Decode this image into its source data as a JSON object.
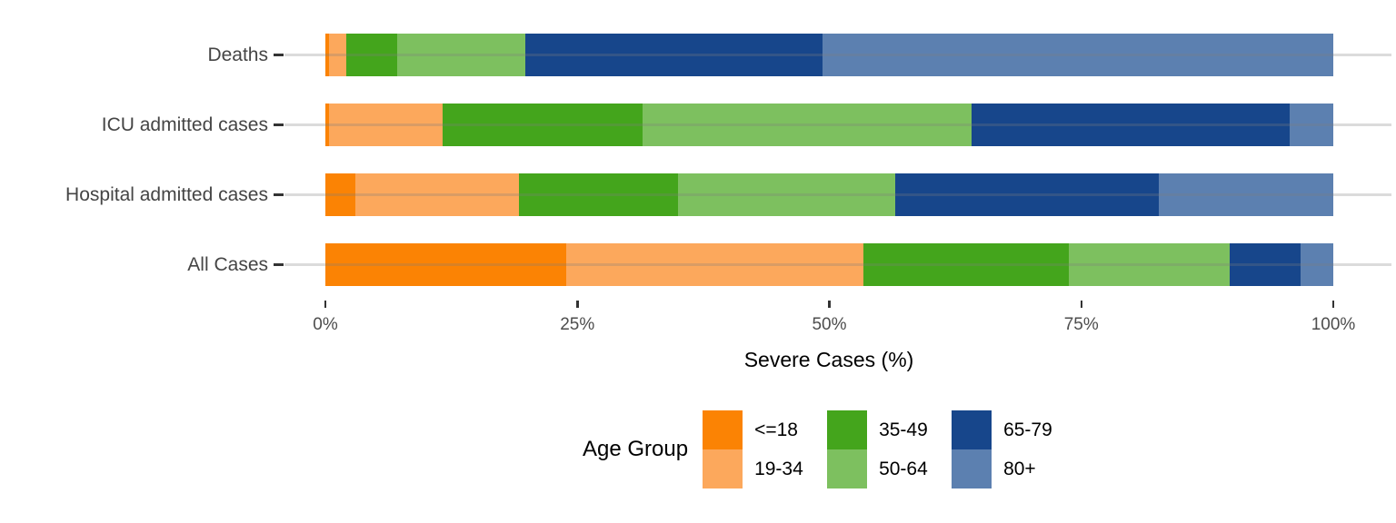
{
  "chart_data": {
    "type": "bar",
    "orientation": "horizontal",
    "stacked": true,
    "title": "",
    "xlabel": "Severe Cases (%)",
    "ylabel": "",
    "xlim": [
      0,
      100
    ],
    "grid": "horizontal-only",
    "x_ticks": [
      {
        "value": 0,
        "label": "0%"
      },
      {
        "value": 25,
        "label": "25%"
      },
      {
        "value": 50,
        "label": "50%"
      },
      {
        "value": 75,
        "label": "75%"
      },
      {
        "value": 100,
        "label": "100%"
      }
    ],
    "categories": [
      "Deaths",
      "ICU admitted cases",
      "Hospital admitted cases",
      "All Cases"
    ],
    "series": [
      {
        "name": "<=18",
        "color": "#FB8304",
        "values": [
          0.4,
          0.4,
          3.0,
          23.9
        ]
      },
      {
        "name": "19-34",
        "color": "#FCA85C",
        "values": [
          1.7,
          11.2,
          16.2,
          29.5
        ]
      },
      {
        "name": "35-49",
        "color": "#44A51C",
        "values": [
          5.0,
          19.9,
          15.8,
          20.4
        ]
      },
      {
        "name": "50-64",
        "color": "#7DC05F",
        "values": [
          12.7,
          32.6,
          21.5,
          15.9
        ]
      },
      {
        "name": "65-79",
        "color": "#17468B",
        "values": [
          29.5,
          31.6,
          26.2,
          7.1
        ]
      },
      {
        "name": "80+",
        "color": "#5C80B0",
        "values": [
          50.7,
          4.3,
          17.3,
          3.2
        ]
      }
    ],
    "legend": {
      "title": "Age Group",
      "position": "bottom",
      "rows": 2,
      "entries": [
        "<=18",
        "19-34",
        "35-49",
        "50-64",
        "65-79",
        "80+"
      ]
    },
    "style": {
      "gridline_color": "#DADADA",
      "axis_text_color": "#4D4D4D",
      "tick_color": "#333333",
      "background": "#FFFFFF"
    }
  }
}
